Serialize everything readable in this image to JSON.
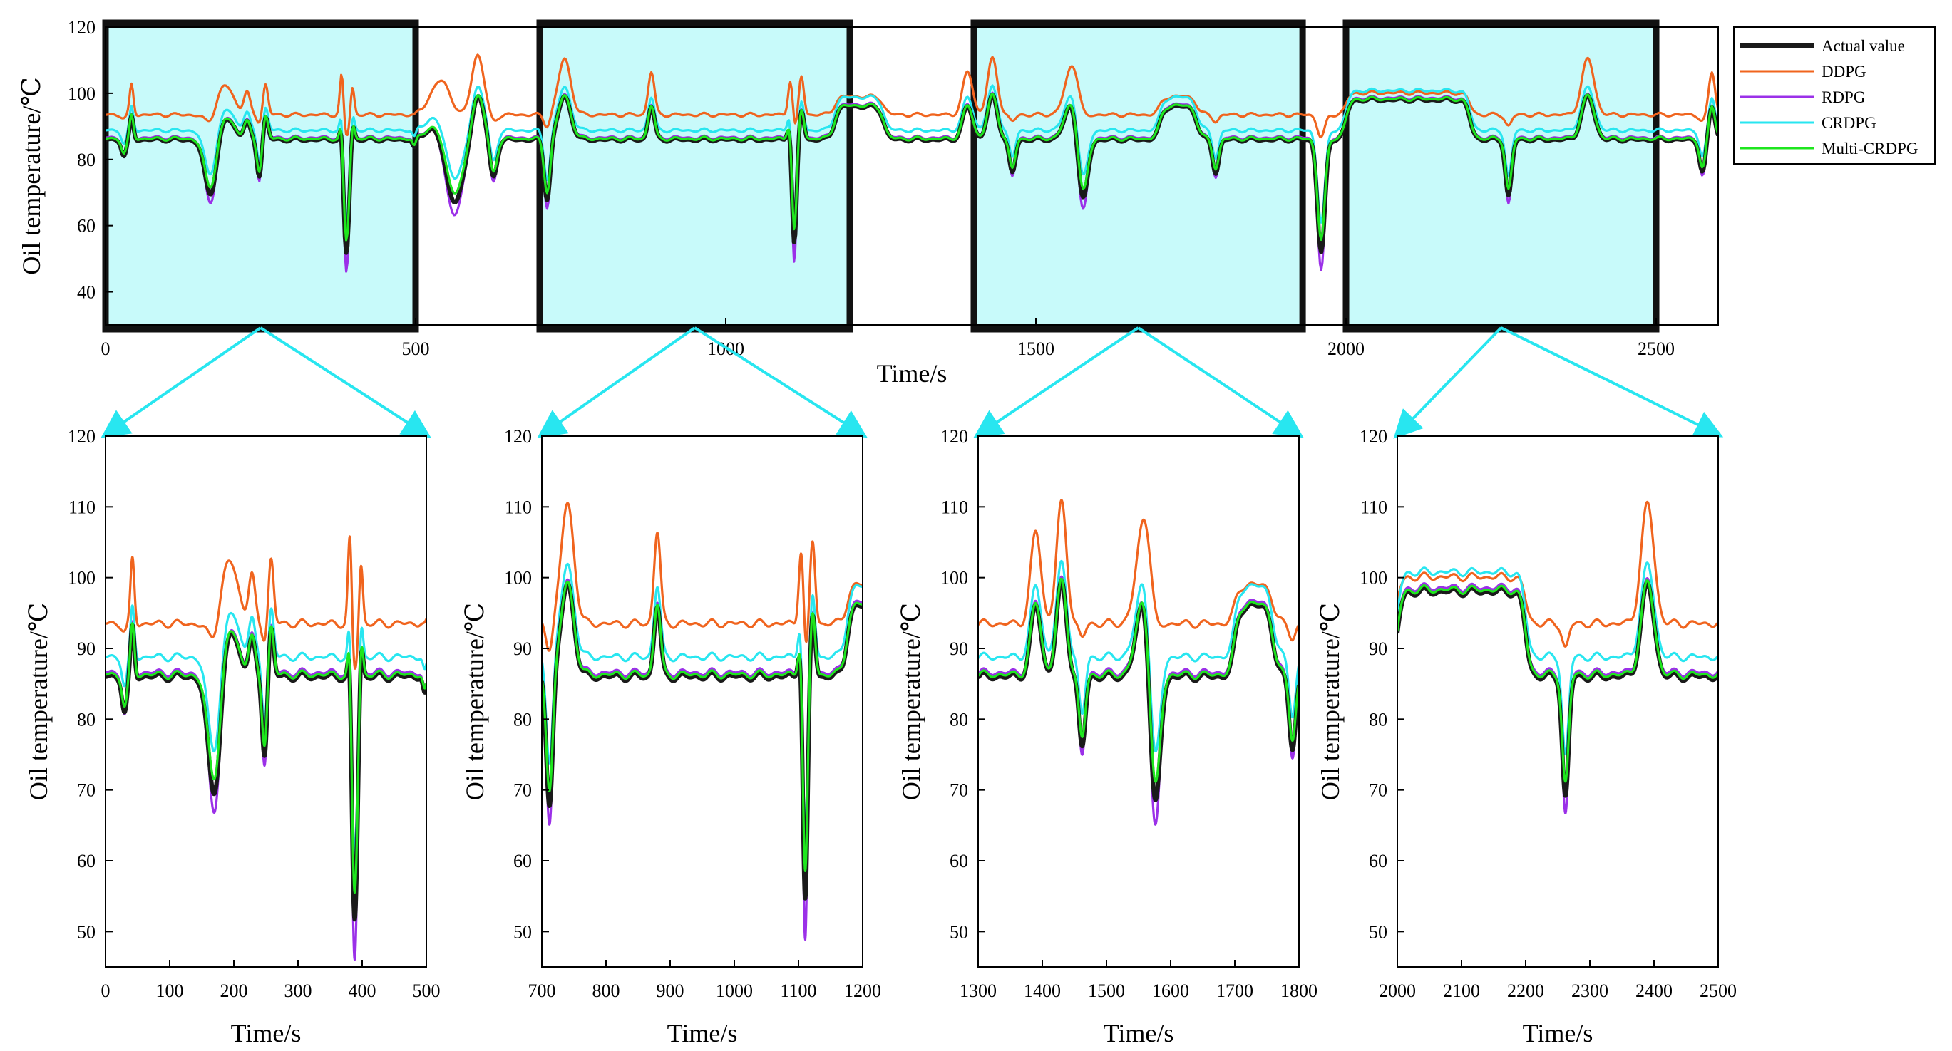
{
  "chart_data": {
    "type": "line",
    "series_names": [
      "Actual value",
      "DDPG",
      "RDPG",
      "CRDPG",
      "Multi-CRDPG"
    ],
    "colors": {
      "Actual value": "#1a1a1a",
      "DDPG": "#f0641e",
      "RDPG": "#9b30e8",
      "CRDPG": "#28e6f0",
      "Multi-CRDPG": "#1ee61e",
      "highlight_fill": "#c8fafa",
      "arrow": "#28e6f0"
    },
    "main": {
      "xlabel": "Time/s",
      "ylabel": "Oil temperature/℃",
      "xlim": [
        0,
        2600
      ],
      "ylim": [
        30,
        120
      ],
      "xticks": [
        0,
        500,
        1000,
        1500,
        2000,
        2500
      ],
      "yticks": [
        40,
        60,
        80,
        100,
        120
      ],
      "highlight_windows": [
        [
          0,
          500
        ],
        [
          700,
          1200
        ],
        [
          1400,
          1930
        ],
        [
          2000,
          2500
        ]
      ]
    },
    "insets": [
      {
        "xlim": [
          0,
          500
        ],
        "xticks": [
          0,
          100,
          200,
          300,
          400,
          500
        ],
        "ylim": [
          45,
          120
        ],
        "yticks": [
          50,
          60,
          70,
          80,
          90,
          100,
          110,
          120
        ],
        "xlabel": "Time/s",
        "ylabel": "Oil temperature/℃"
      },
      {
        "xlim": [
          700,
          1200
        ],
        "xticks": [
          700,
          800,
          900,
          1000,
          1100,
          1200
        ],
        "ylim": [
          45,
          120
        ],
        "yticks": [
          50,
          60,
          70,
          80,
          90,
          100,
          110,
          120
        ],
        "xlabel": "Time/s",
        "ylabel": "Oil temperature/℃"
      },
      {
        "xlim": [
          1300,
          1800
        ],
        "xticks": [
          1300,
          1400,
          1500,
          1600,
          1700,
          1800
        ],
        "ylim": [
          45,
          120
        ],
        "yticks": [
          50,
          60,
          70,
          80,
          90,
          100,
          110,
          120
        ],
        "xlabel": "Time/s",
        "ylabel": "Oil temperature/℃"
      },
      {
        "xlim": [
          2000,
          2500
        ],
        "xticks": [
          2000,
          2100,
          2200,
          2300,
          2400,
          2500
        ],
        "ylim": [
          45,
          120
        ],
        "yticks": [
          50,
          60,
          70,
          80,
          90,
          100,
          110,
          120
        ],
        "xlabel": "Time/s",
        "ylabel": "Oil temperature/℃"
      }
    ],
    "profile": {
      "base": 86,
      "offsets": {
        "DDPG": 7.5,
        "RDPG": 0.6,
        "CRDPG": 2.8,
        "Multi-CRDPG": 0.3
      },
      "dip_scale": {
        "Actual value": 1.0,
        "DDPG": 0.2,
        "RDPG": 1.18,
        "CRDPG": 0.82,
        "Multi-CRDPG": 0.9
      },
      "events": [
        {
          "kind": "dip",
          "t": 30,
          "depth": 5,
          "w": 4
        },
        {
          "kind": "peak",
          "t": 42,
          "height": 7,
          "w": 3
        },
        {
          "kind": "dip",
          "t": 170,
          "depth": 18,
          "w": 10
        },
        {
          "kind": "peak",
          "t": 192,
          "height": 7,
          "w": 14
        },
        {
          "kind": "peak",
          "t": 228,
          "height": 5,
          "w": 5
        },
        {
          "kind": "dip",
          "t": 248,
          "depth": 11,
          "w": 4
        },
        {
          "kind": "peak",
          "t": 258,
          "height": 7,
          "w": 4
        },
        {
          "kind": "dip",
          "t": 388,
          "depth": 35,
          "w": 5
        },
        {
          "kind": "peak",
          "t": 381,
          "height": 11,
          "w": 3
        },
        {
          "kind": "peak",
          "t": 398,
          "height": 7,
          "w": 3
        },
        {
          "kind": "dip",
          "t": 498,
          "depth": 3,
          "w": 3
        },
        {
          "kind": "peak",
          "t": 545,
          "height": 10,
          "w": 18
        },
        {
          "kind": "dip",
          "t": 560,
          "depth": 25,
          "w": 16
        },
        {
          "kind": "peak",
          "t": 600,
          "height": 14,
          "w": 10
        },
        {
          "kind": "dip",
          "t": 625,
          "depth": 12,
          "w": 6
        },
        {
          "kind": "dip",
          "t": 712,
          "depth": 18,
          "w": 5
        },
        {
          "kind": "peak",
          "t": 740,
          "height": 13,
          "w": 10
        },
        {
          "kind": "peak",
          "t": 880,
          "height": 10,
          "w": 5
        },
        {
          "kind": "peak",
          "t": 1105,
          "height": 10,
          "w": 4
        },
        {
          "kind": "dip",
          "t": 1110,
          "depth": 36,
          "w": 4
        },
        {
          "kind": "peak",
          "t": 1122,
          "height": 9,
          "w": 4
        },
        {
          "kind": "step",
          "t0": 1175,
          "t1": 1255,
          "height": 10
        },
        {
          "kind": "peak",
          "t": 1390,
          "height": 10,
          "w": 8
        },
        {
          "kind": "peak",
          "t": 1430,
          "height": 13,
          "w": 8
        },
        {
          "kind": "dip",
          "t": 1462,
          "depth": 10,
          "w": 5
        },
        {
          "kind": "peak",
          "t": 1560,
          "height": 12,
          "w": 12
        },
        {
          "kind": "dip",
          "t": 1575,
          "depth": 23,
          "w": 8
        },
        {
          "kind": "step",
          "t0": 1700,
          "t1": 1760,
          "height": 10
        },
        {
          "kind": "dip",
          "t": 1790,
          "depth": 10,
          "w": 5
        },
        {
          "kind": "dip",
          "t": 1960,
          "depth": 34,
          "w": 6
        },
        {
          "kind": "step",
          "t0": 2000,
          "t1": 2200,
          "height": 12
        },
        {
          "kind": "dip",
          "t": 2262,
          "depth": 17,
          "w": 5
        },
        {
          "kind": "peak",
          "t": 2390,
          "height": 13,
          "w": 10
        },
        {
          "kind": "dip",
          "t": 2575,
          "depth": 10,
          "w": 5
        },
        {
          "kind": "peak",
          "t": 2590,
          "height": 10,
          "w": 5
        }
      ]
    }
  }
}
